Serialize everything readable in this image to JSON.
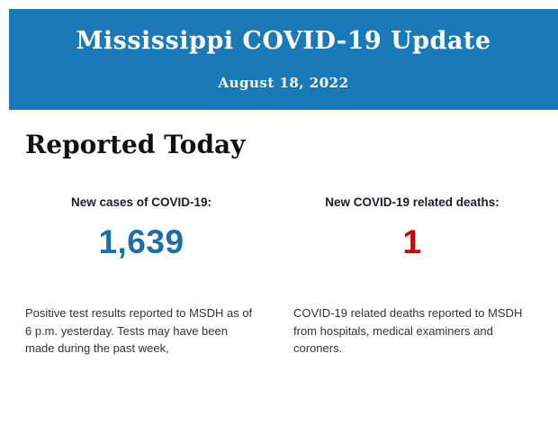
{
  "header": {
    "title": "Mississippi COVID-19 Update",
    "date": "August 18, 2022",
    "background_color": "#1a7ab8"
  },
  "section": {
    "title": "Reported Today"
  },
  "stats": {
    "cases": {
      "label": "New cases of COVID-19:",
      "value": "1,639",
      "value_color": "#1c6fa6",
      "description": "Positive test results reported to MSDH as of 6 p.m. yesterday. Tests may have been made during the past week,"
    },
    "deaths": {
      "label": "New COVID-19 related deaths:",
      "value": "1",
      "value_color": "#c30b0b",
      "description": "COVID-19 related deaths reported to MSDH from hospitals, medical examiners and coroners."
    }
  }
}
